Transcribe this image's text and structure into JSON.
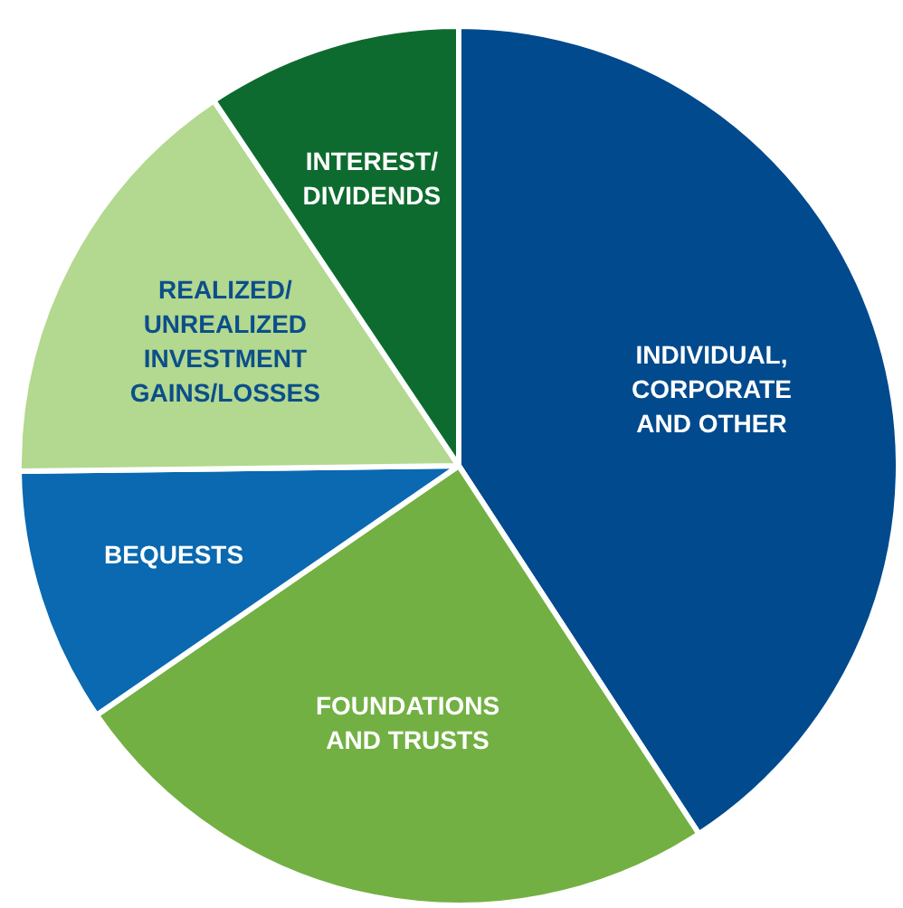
{
  "chart_data": {
    "type": "pie",
    "categories": [
      "INDIVIDUAL,\nCORPORATE\nAND OTHER",
      "FOUNDATIONS\nAND TRUSTS",
      "BEQUESTS",
      "REALIZED/\nUNREALIZED\nINVESTMENT\nGAINS/LOSSES",
      "INTEREST/\nDIVIDENDS"
    ],
    "values": [
      40.8,
      24.6,
      9.4,
      15.8,
      9.4
    ],
    "colors": [
      "#004a8d",
      "#72b043",
      "#0a69b0",
      "#b3d88f",
      "#0e6b2f"
    ],
    "legend": false
  }
}
